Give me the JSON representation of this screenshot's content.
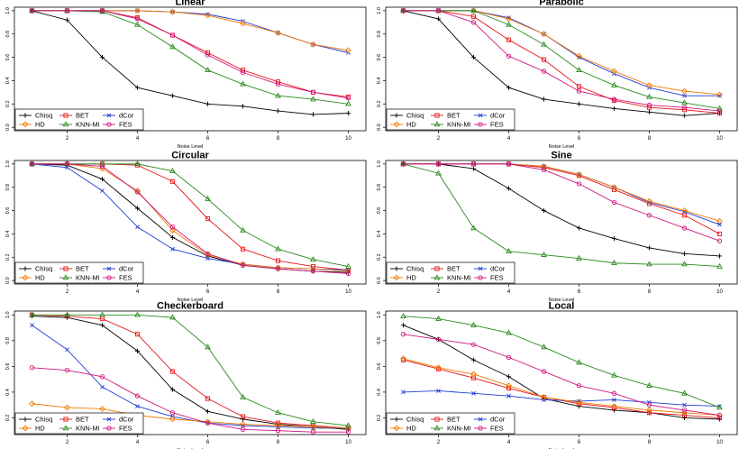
{
  "figure": {
    "shared_xlabel": "Noise Level"
  },
  "legend": {
    "methods": [
      {
        "name": "Chisq",
        "color": "#000000",
        "marker": "plus"
      },
      {
        "name": "BET",
        "color": "#e8171c",
        "marker": "square"
      },
      {
        "name": "dCor",
        "color": "#1f3bd6",
        "marker": "x"
      },
      {
        "name": "HD",
        "color": "#f07800",
        "marker": "diamond"
      },
      {
        "name": "KNN-MI",
        "color": "#2a8a1e",
        "marker": "triangle"
      },
      {
        "name": "FES",
        "color": "#d0157e",
        "marker": "circle"
      }
    ]
  },
  "chart_data": [
    {
      "type": "line",
      "title": "Linear",
      "xlabel": "Noise Level",
      "ylabel": "",
      "x": [
        1,
        2,
        3,
        4,
        5,
        6,
        7,
        8,
        9,
        10
      ],
      "xticks": [
        2,
        4,
        6,
        8,
        10
      ],
      "yticks": [
        0.0,
        0.2,
        0.4,
        0.6,
        0.8,
        1.0
      ],
      "xlim": [
        0.5,
        10.5
      ],
      "ylim": [
        -0.03,
        1.03
      ],
      "series": [
        {
          "name": "Chisq",
          "values": [
            1.0,
            0.92,
            0.6,
            0.34,
            0.27,
            0.2,
            0.18,
            0.14,
            0.11,
            0.12
          ]
        },
        {
          "name": "BET",
          "values": [
            1.0,
            1.0,
            1.0,
            0.94,
            0.79,
            0.64,
            0.49,
            0.39,
            0.3,
            0.26
          ]
        },
        {
          "name": "dCor",
          "values": [
            1.0,
            1.0,
            1.0,
            1.0,
            0.99,
            0.97,
            0.91,
            0.81,
            0.71,
            0.64
          ]
        },
        {
          "name": "HD",
          "values": [
            1.0,
            1.0,
            1.0,
            1.0,
            0.99,
            0.96,
            0.89,
            0.81,
            0.71,
            0.66
          ]
        },
        {
          "name": "KNN-MI",
          "values": [
            1.0,
            1.0,
            0.99,
            0.88,
            0.69,
            0.49,
            0.37,
            0.27,
            0.24,
            0.2
          ]
        },
        {
          "name": "FES",
          "values": [
            1.0,
            1.0,
            1.0,
            0.93,
            0.79,
            0.62,
            0.47,
            0.37,
            0.3,
            0.25
          ]
        }
      ]
    },
    {
      "type": "line",
      "title": "Parabolic",
      "xlabel": "Noise Level",
      "ylabel": "",
      "x": [
        1,
        2,
        3,
        4,
        5,
        6,
        7,
        8,
        9,
        10
      ],
      "xticks": [
        2,
        4,
        6,
        8,
        10
      ],
      "yticks": [
        0.0,
        0.2,
        0.4,
        0.6,
        0.8,
        1.0
      ],
      "xlim": [
        0.5,
        10.5
      ],
      "ylim": [
        -0.03,
        1.03
      ],
      "series": [
        {
          "name": "Chisq",
          "values": [
            1.0,
            0.93,
            0.6,
            0.34,
            0.24,
            0.2,
            0.16,
            0.13,
            0.1,
            0.12
          ]
        },
        {
          "name": "BET",
          "values": [
            1.0,
            1.0,
            0.95,
            0.75,
            0.58,
            0.35,
            0.23,
            0.17,
            0.15,
            0.12
          ]
        },
        {
          "name": "dCor",
          "values": [
            1.0,
            1.0,
            1.0,
            0.94,
            0.8,
            0.6,
            0.46,
            0.34,
            0.27,
            0.27
          ]
        },
        {
          "name": "HD",
          "values": [
            1.0,
            1.0,
            1.0,
            0.93,
            0.8,
            0.61,
            0.48,
            0.36,
            0.31,
            0.28
          ]
        },
        {
          "name": "KNN-MI",
          "values": [
            1.0,
            1.0,
            1.0,
            0.88,
            0.71,
            0.49,
            0.36,
            0.26,
            0.21,
            0.16
          ]
        },
        {
          "name": "FES",
          "values": [
            1.0,
            1.0,
            0.9,
            0.61,
            0.48,
            0.31,
            0.24,
            0.19,
            0.17,
            0.14
          ]
        }
      ]
    },
    {
      "type": "line",
      "title": "Circular",
      "xlabel": "Noise Level",
      "ylabel": "",
      "x": [
        1,
        2,
        3,
        4,
        5,
        6,
        7,
        8,
        9,
        10
      ],
      "xticks": [
        2,
        4,
        6,
        8,
        10
      ],
      "yticks": [
        0.0,
        0.2,
        0.4,
        0.6,
        0.8,
        1.0
      ],
      "xlim": [
        0.5,
        10.5
      ],
      "ylim": [
        -0.03,
        1.03
      ],
      "series": [
        {
          "name": "Chisq",
          "values": [
            1.0,
            0.99,
            0.87,
            0.62,
            0.37,
            0.21,
            0.13,
            0.1,
            0.08,
            0.07
          ]
        },
        {
          "name": "BET",
          "values": [
            1.0,
            1.0,
            1.0,
            0.99,
            0.85,
            0.53,
            0.27,
            0.17,
            0.12,
            0.09
          ]
        },
        {
          "name": "dCor",
          "values": [
            1.0,
            0.97,
            0.77,
            0.46,
            0.27,
            0.19,
            0.14,
            0.11,
            0.1,
            0.09
          ]
        },
        {
          "name": "HD",
          "values": [
            1.0,
            1.0,
            0.96,
            0.77,
            0.43,
            0.22,
            0.14,
            0.11,
            0.1,
            0.08
          ]
        },
        {
          "name": "KNN-MI",
          "values": [
            1.0,
            1.0,
            1.0,
            1.0,
            0.94,
            0.7,
            0.43,
            0.27,
            0.18,
            0.12
          ]
        },
        {
          "name": "FES",
          "values": [
            1.0,
            1.0,
            0.98,
            0.76,
            0.46,
            0.23,
            0.13,
            0.1,
            0.08,
            0.06
          ]
        }
      ]
    },
    {
      "type": "line",
      "title": "Sine",
      "xlabel": "Noise Level",
      "ylabel": "",
      "x": [
        1,
        2,
        3,
        4,
        5,
        6,
        7,
        8,
        9,
        10
      ],
      "xticks": [
        2,
        4,
        6,
        8,
        10
      ],
      "yticks": [
        0.0,
        0.2,
        0.4,
        0.6,
        0.8,
        1.0
      ],
      "xlim": [
        0.5,
        10.5
      ],
      "ylim": [
        -0.03,
        1.03
      ],
      "series": [
        {
          "name": "Chisq",
          "values": [
            1.0,
            1.0,
            0.96,
            0.79,
            0.6,
            0.45,
            0.36,
            0.28,
            0.23,
            0.21
          ]
        },
        {
          "name": "BET",
          "values": [
            1.0,
            1.0,
            1.0,
            1.0,
            0.97,
            0.9,
            0.78,
            0.66,
            0.56,
            0.4
          ]
        },
        {
          "name": "dCor",
          "values": [
            1.0,
            1.0,
            1.0,
            1.0,
            0.98,
            0.91,
            0.8,
            0.67,
            0.59,
            0.48
          ]
        },
        {
          "name": "HD",
          "values": [
            1.0,
            1.0,
            1.0,
            1.0,
            0.98,
            0.91,
            0.8,
            0.68,
            0.6,
            0.51
          ]
        },
        {
          "name": "KNN-MI",
          "values": [
            1.0,
            0.92,
            0.45,
            0.25,
            0.22,
            0.19,
            0.15,
            0.14,
            0.14,
            0.12
          ]
        },
        {
          "name": "FES",
          "values": [
            1.0,
            1.0,
            1.0,
            1.0,
            0.95,
            0.83,
            0.67,
            0.56,
            0.45,
            0.34
          ]
        }
      ]
    },
    {
      "type": "line",
      "title": "Checkerboard",
      "xlabel": "Noise Level",
      "ylabel": "",
      "x": [
        1,
        2,
        3,
        4,
        5,
        6,
        7,
        8,
        9,
        10
      ],
      "xticks": [
        2,
        4,
        6,
        8,
        10
      ],
      "yticks": [
        0.2,
        0.4,
        0.6,
        0.8,
        1.0
      ],
      "xlim": [
        0.5,
        10.5
      ],
      "ylim": [
        0.07,
        1.03
      ],
      "series": [
        {
          "name": "Chisq",
          "values": [
            0.99,
            0.98,
            0.92,
            0.72,
            0.42,
            0.25,
            0.19,
            0.15,
            0.13,
            0.11
          ]
        },
        {
          "name": "BET",
          "values": [
            1.0,
            0.99,
            0.97,
            0.85,
            0.56,
            0.35,
            0.21,
            0.16,
            0.14,
            0.12
          ]
        },
        {
          "name": "dCor",
          "values": [
            0.92,
            0.73,
            0.44,
            0.29,
            0.21,
            0.16,
            0.14,
            0.13,
            0.12,
            0.12
          ]
        },
        {
          "name": "HD",
          "values": [
            0.31,
            0.28,
            0.27,
            0.22,
            0.19,
            0.17,
            0.15,
            0.14,
            0.13,
            0.12
          ]
        },
        {
          "name": "KNN-MI",
          "values": [
            1.0,
            1.0,
            1.0,
            1.0,
            0.98,
            0.75,
            0.36,
            0.24,
            0.17,
            0.14
          ]
        },
        {
          "name": "FES",
          "values": [
            0.59,
            0.57,
            0.52,
            0.37,
            0.24,
            0.16,
            0.11,
            0.1,
            0.09,
            0.09
          ]
        }
      ]
    },
    {
      "type": "line",
      "title": "Local",
      "xlabel": "Noise Level",
      "ylabel": "",
      "x": [
        1,
        2,
        3,
        4,
        5,
        6,
        7,
        8,
        9,
        10
      ],
      "xticks": [
        2,
        4,
        6,
        8,
        10
      ],
      "yticks": [
        0.2,
        0.4,
        0.6,
        0.8,
        1.0
      ],
      "xlim": [
        0.5,
        10.5
      ],
      "ylim": [
        0.07,
        1.03
      ],
      "series": [
        {
          "name": "Chisq",
          "values": [
            0.92,
            0.81,
            0.65,
            0.52,
            0.35,
            0.29,
            0.26,
            0.24,
            0.2,
            0.19
          ]
        },
        {
          "name": "BET",
          "values": [
            0.65,
            0.58,
            0.51,
            0.43,
            0.36,
            0.31,
            0.28,
            0.24,
            0.22,
            0.2
          ]
        },
        {
          "name": "dCor",
          "values": [
            0.4,
            0.41,
            0.39,
            0.37,
            0.34,
            0.33,
            0.34,
            0.32,
            0.3,
            0.29
          ]
        },
        {
          "name": "HD",
          "values": [
            0.66,
            0.59,
            0.54,
            0.45,
            0.36,
            0.32,
            0.29,
            0.26,
            0.24,
            0.22
          ]
        },
        {
          "name": "KNN-MI",
          "values": [
            0.99,
            0.97,
            0.92,
            0.86,
            0.75,
            0.63,
            0.53,
            0.45,
            0.39,
            0.28
          ]
        },
        {
          "name": "FES",
          "values": [
            0.85,
            0.81,
            0.77,
            0.67,
            0.56,
            0.45,
            0.39,
            0.3,
            0.26,
            0.22
          ]
        }
      ]
    }
  ]
}
